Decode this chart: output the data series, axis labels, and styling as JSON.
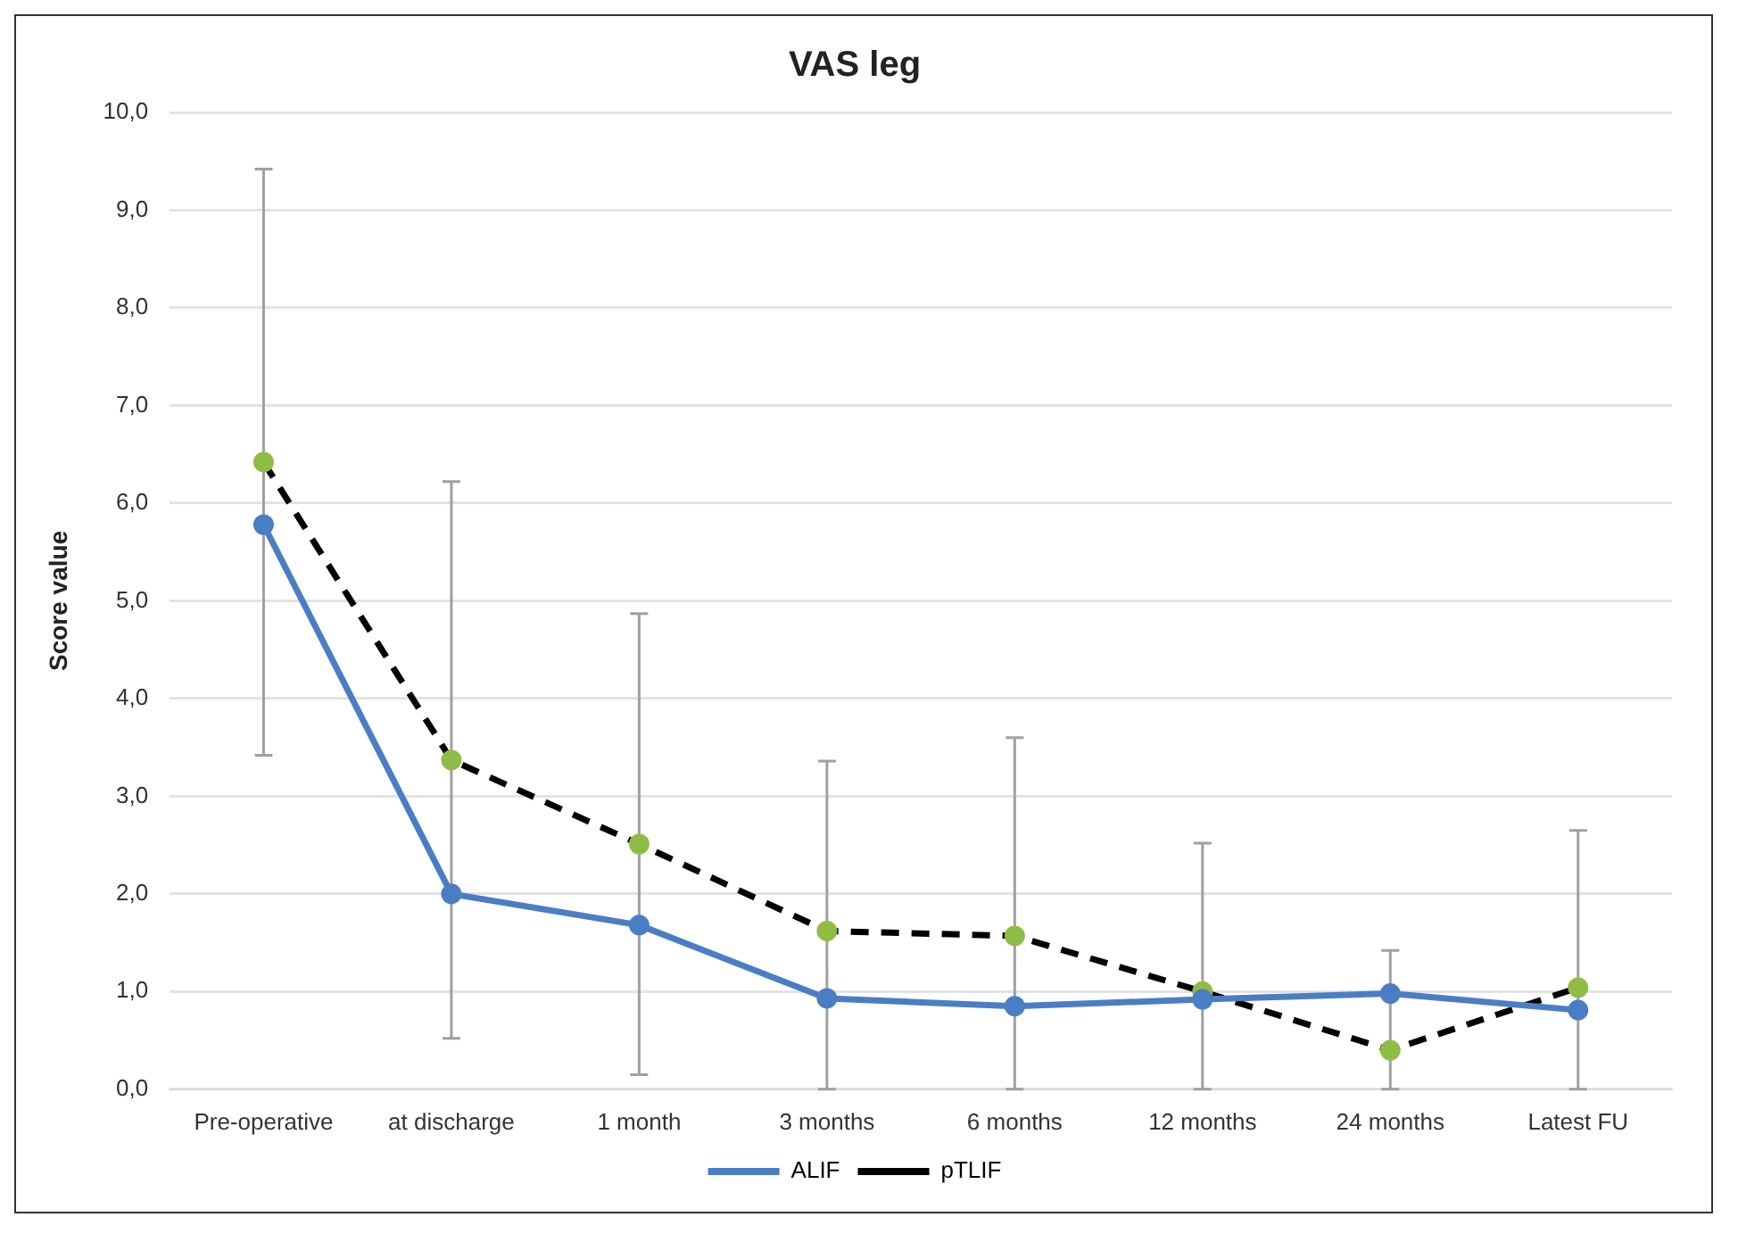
{
  "chart_data": {
    "type": "line",
    "title": "VAS leg",
    "ylabel": "Score value",
    "categories": [
      "Pre-operative",
      "at discharge",
      "1 month",
      "3 months",
      "6 months",
      "12 months",
      "24 months",
      "Latest FU"
    ],
    "series": [
      {
        "name": "ALIF",
        "color": "#4a7ec4",
        "line_style": "solid",
        "values": [
          5.78,
          2.0,
          1.68,
          0.93,
          0.85,
          0.92,
          0.98,
          0.81
        ]
      },
      {
        "name": "pTLIF",
        "color": "#000000",
        "colors": [
          "#8fbc45",
          "#8fbc45",
          "#8fbc45",
          "#8fbc45",
          "#8fbc45",
          "#8fbc45",
          "#8fbc45",
          "#8fbc45"
        ],
        "line_style": "dashed",
        "values": [
          6.42,
          3.37,
          2.51,
          1.62,
          1.57,
          1.0,
          0.4,
          1.04
        ],
        "errors": [
          [
            3.42,
            9.42
          ],
          [
            0.52,
            6.22
          ],
          [
            0.15,
            4.87
          ],
          [
            0,
            3.36
          ],
          [
            0,
            3.6
          ],
          [
            0,
            2.52
          ],
          [
            0,
            1.42
          ],
          [
            0,
            2.65
          ]
        ]
      }
    ],
    "ylim": [
      0,
      10
    ],
    "yticks": [
      {
        "value": 0,
        "label": "0,0"
      },
      {
        "value": 1,
        "label": "1,0"
      },
      {
        "value": 2,
        "label": "2,0"
      },
      {
        "value": 3,
        "label": "3,0"
      },
      {
        "value": 4,
        "label": "4,0"
      },
      {
        "value": 5,
        "label": "5,0"
      },
      {
        "value": 6,
        "label": "6,0"
      },
      {
        "value": 7,
        "label": "7,0"
      },
      {
        "value": 8,
        "label": "8,0"
      },
      {
        "value": 9,
        "label": "9,0"
      },
      {
        "value": 10,
        "label": "10,0"
      }
    ],
    "grid": "y",
    "legend": "bottom",
    "marker": "circle"
  }
}
